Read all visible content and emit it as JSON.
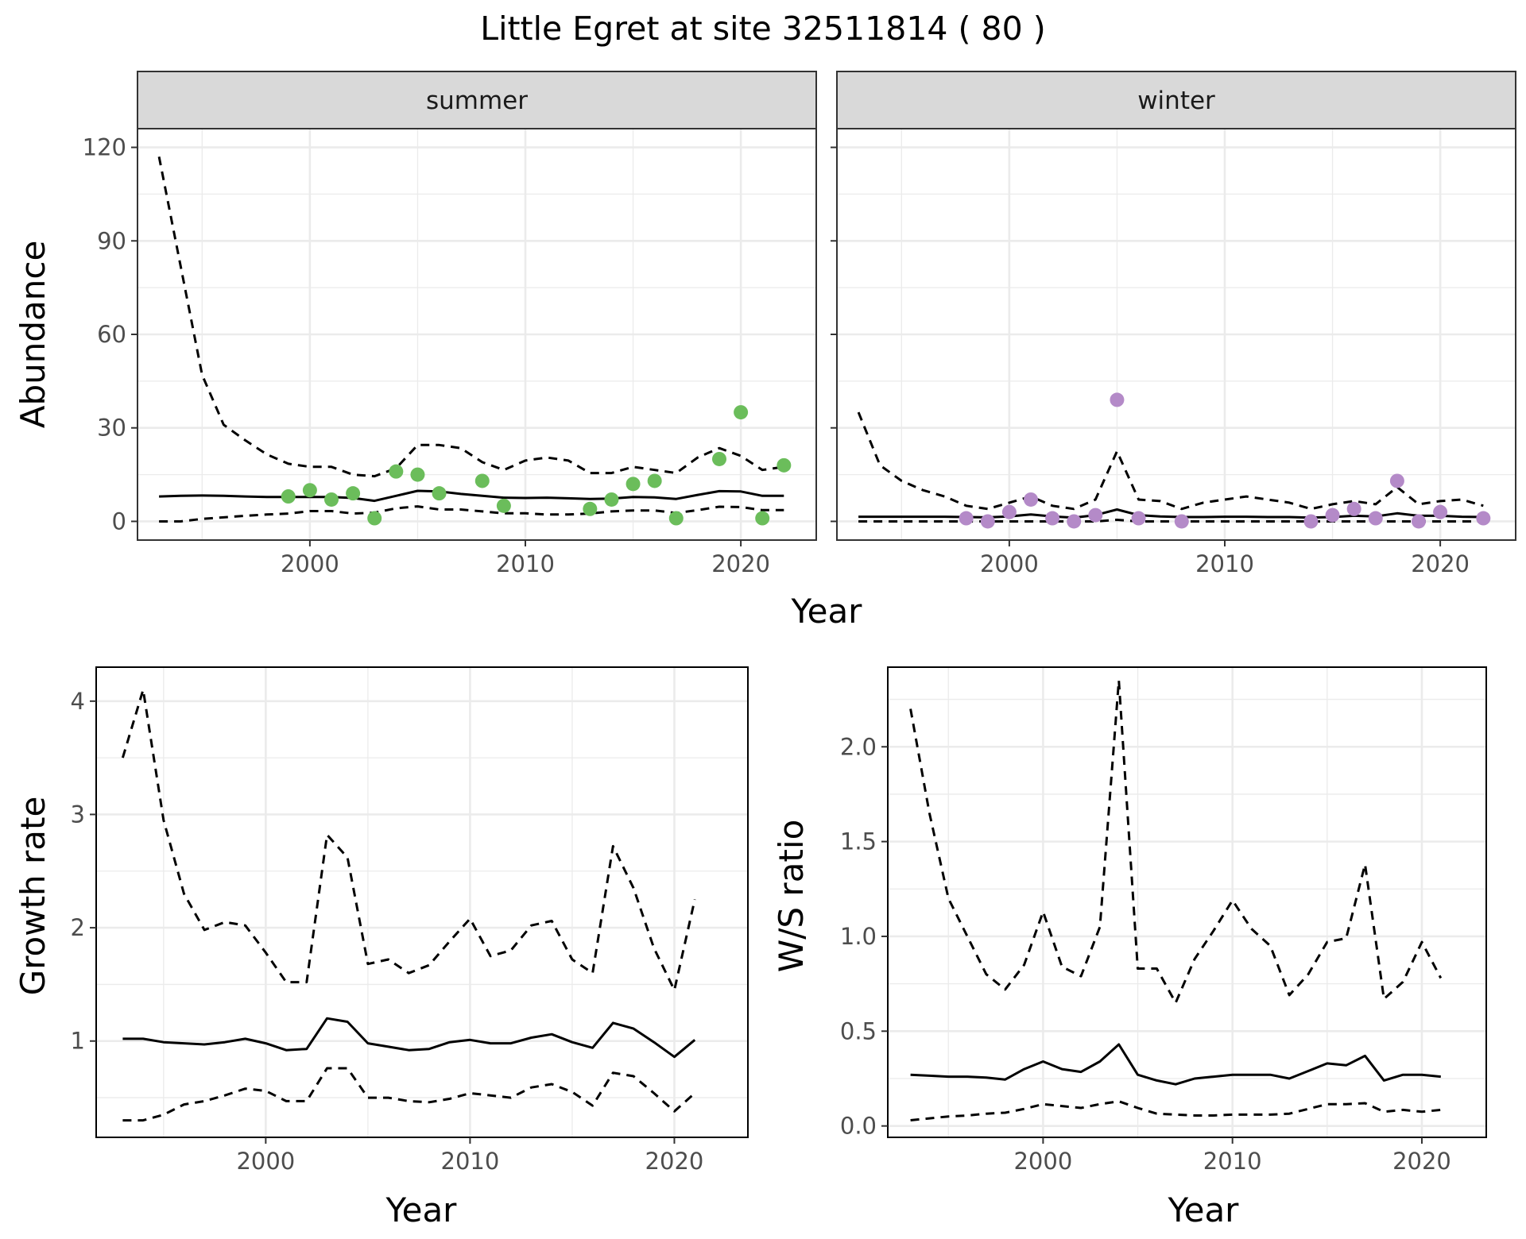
{
  "title": "Little Egret at site 32511814 ( 80 )",
  "colors": {
    "summer_points": "#6bbd5b",
    "winter_points": "#b48ac8",
    "lines": "#000000",
    "strip_bg": "#d9d9d9",
    "grid": "#ebebeb",
    "panel_border": "#333333"
  },
  "chart_data": [
    {
      "type": "line",
      "panel": "summer",
      "facet_label": "summer",
      "xlabel": "Year",
      "ylabel": "Abundance",
      "xlim": [
        1992,
        2023.5
      ],
      "ylim": [
        -6,
        126
      ],
      "x_ticks": [
        2000,
        2010,
        2020
      ],
      "y_ticks": [
        0,
        30,
        60,
        90,
        120
      ],
      "grid": true,
      "x": [
        1993,
        1994,
        1995,
        1996,
        1997,
        1998,
        1999,
        2000,
        2001,
        2002,
        2003,
        2004,
        2005,
        2006,
        2007,
        2008,
        2009,
        2010,
        2011,
        2012,
        2013,
        2014,
        2015,
        2016,
        2017,
        2018,
        2019,
        2020,
        2021,
        2022
      ],
      "series": [
        {
          "role": "estimate",
          "style": "solid",
          "values": [
            8,
            8.2,
            8.3,
            8.2,
            8,
            7.8,
            7.8,
            7.8,
            7.8,
            7.5,
            6.6,
            8.2,
            9.8,
            9.6,
            8.8,
            8.2,
            7.6,
            7.5,
            7.6,
            7.4,
            7.2,
            7.3,
            7.8,
            7.7,
            7.2,
            8.5,
            9.7,
            9.6,
            8.2,
            8.2
          ]
        },
        {
          "role": "upper",
          "style": "dashed",
          "values": [
            117,
            82,
            47,
            31,
            26,
            21.5,
            18.5,
            17.5,
            17.5,
            15,
            14.5,
            17,
            24.5,
            24.5,
            23.5,
            19,
            16.5,
            19.5,
            20.5,
            19.5,
            15.5,
            15.5,
            17.5,
            16.5,
            15.5,
            20.5,
            23.5,
            21,
            16.5,
            17.5
          ]
        },
        {
          "role": "lower",
          "style": "dashed",
          "values": [
            0,
            0,
            0.8,
            1.3,
            1.8,
            2.2,
            2.5,
            3.3,
            3.3,
            2.5,
            2.8,
            4.2,
            4.8,
            3.8,
            3.8,
            3.2,
            2.6,
            2.6,
            2.2,
            2.2,
            2.5,
            3.2,
            3.5,
            3.5,
            2.7,
            3.6,
            4.7,
            4.6,
            3.6,
            3.6
          ]
        }
      ],
      "points": {
        "x": [
          1999,
          2000,
          2001,
          2002,
          2003,
          2004,
          2005,
          2006,
          2008,
          2009,
          2013,
          2014,
          2015,
          2016,
          2017,
          2019,
          2020,
          2021,
          2022
        ],
        "y": [
          8,
          10,
          7,
          9,
          1,
          16,
          15,
          9,
          13,
          5,
          4,
          7,
          12,
          13,
          1,
          20,
          35,
          1,
          18
        ]
      }
    },
    {
      "type": "line",
      "panel": "winter",
      "facet_label": "winter",
      "xlabel": "Year",
      "ylabel": "Abundance",
      "xlim": [
        1992,
        2023.5
      ],
      "ylim": [
        -6,
        126
      ],
      "x_ticks": [
        2000,
        2010,
        2020
      ],
      "y_ticks": [
        0,
        30,
        60,
        90,
        120
      ],
      "grid": true,
      "x": [
        1993,
        1994,
        1995,
        1996,
        1997,
        1998,
        1999,
        2000,
        2001,
        2002,
        2003,
        2004,
        2005,
        2006,
        2007,
        2008,
        2009,
        2010,
        2011,
        2012,
        2013,
        2014,
        2015,
        2016,
        2017,
        2018,
        2019,
        2020,
        2021,
        2022
      ],
      "series": [
        {
          "role": "estimate",
          "style": "solid",
          "values": [
            1.5,
            1.5,
            1.5,
            1.5,
            1.5,
            1.4,
            1.3,
            1.6,
            2.2,
            1.6,
            1.2,
            2,
            3.8,
            2,
            1.6,
            1.4,
            1.4,
            1.5,
            1.5,
            1.4,
            1.4,
            1.2,
            1.4,
            1.8,
            1.6,
            2.6,
            1.8,
            1.8,
            1.5,
            1.4
          ]
        },
        {
          "role": "upper",
          "style": "dashed",
          "values": [
            35,
            18,
            13,
            10,
            8,
            5,
            4,
            6,
            8,
            5,
            4,
            7,
            22.5,
            7,
            6.5,
            4,
            6,
            7,
            8,
            7,
            6,
            4,
            5.5,
            6.5,
            5.5,
            11,
            5.5,
            6.5,
            7,
            5
          ]
        },
        {
          "role": "lower",
          "style": "dashed",
          "values": [
            0,
            0,
            0,
            0,
            0,
            0,
            0,
            0,
            0,
            0,
            0,
            0,
            0.5,
            0,
            0,
            0,
            0,
            0,
            0,
            0,
            0,
            0,
            0,
            0,
            0,
            0,
            0,
            0,
            0,
            0
          ]
        }
      ],
      "points": {
        "x": [
          1998,
          1999,
          2000,
          2001,
          2002,
          2003,
          2004,
          2005,
          2006,
          2008,
          2014,
          2015,
          2016,
          2017,
          2018,
          2019,
          2020,
          2022
        ],
        "y": [
          1,
          0,
          3,
          7,
          1,
          0,
          2,
          39,
          1,
          0,
          0,
          2,
          4,
          1,
          13,
          0,
          3,
          1
        ]
      }
    },
    {
      "type": "line",
      "panel": "growth",
      "xlabel": "Year",
      "ylabel": "Growth rate",
      "xlim": [
        1991.7,
        2023.6
      ],
      "ylim": [
        0.15,
        4.3
      ],
      "x_ticks": [
        2000,
        2010,
        2020
      ],
      "y_ticks": [
        1,
        2,
        3,
        4
      ],
      "grid": true,
      "x": [
        1993,
        1994,
        1995,
        1996,
        1997,
        1998,
        1999,
        2000,
        2001,
        2002,
        2003,
        2004,
        2005,
        2006,
        2007,
        2008,
        2009,
        2010,
        2011,
        2012,
        2013,
        2014,
        2015,
        2016,
        2017,
        2018,
        2019,
        2020,
        2021
      ],
      "series": [
        {
          "role": "estimate",
          "style": "solid",
          "values": [
            1.02,
            1.02,
            0.99,
            0.98,
            0.97,
            0.99,
            1.02,
            0.98,
            0.92,
            0.93,
            1.2,
            1.17,
            0.98,
            0.95,
            0.92,
            0.93,
            0.99,
            1.01,
            0.98,
            0.98,
            1.03,
            1.06,
            0.99,
            0.94,
            1.16,
            1.11,
            0.99,
            0.86,
            1.01
          ]
        },
        {
          "role": "upper",
          "style": "dashed",
          "values": [
            3.5,
            4.1,
            2.95,
            2.3,
            1.98,
            2.05,
            2.02,
            1.78,
            1.52,
            1.52,
            2.82,
            2.62,
            1.68,
            1.72,
            1.6,
            1.67,
            1.88,
            2.08,
            1.75,
            1.8,
            2.02,
            2.06,
            1.72,
            1.6,
            2.72,
            2.35,
            1.82,
            1.45,
            2.25
          ]
        },
        {
          "role": "lower",
          "style": "dashed",
          "values": [
            0.3,
            0.3,
            0.35,
            0.44,
            0.47,
            0.52,
            0.58,
            0.56,
            0.47,
            0.47,
            0.76,
            0.76,
            0.5,
            0.5,
            0.47,
            0.46,
            0.49,
            0.54,
            0.52,
            0.5,
            0.59,
            0.62,
            0.55,
            0.43,
            0.72,
            0.69,
            0.54,
            0.38,
            0.54
          ]
        }
      ]
    },
    {
      "type": "line",
      "panel": "ratio",
      "xlabel": "Year",
      "ylabel": "W/S ratio",
      "xlim": [
        1991.8,
        2023.4
      ],
      "ylim": [
        -0.06,
        2.42
      ],
      "x_ticks": [
        2000,
        2010,
        2020
      ],
      "y_ticks": [
        0.0,
        0.5,
        1.0,
        1.5,
        2.0
      ],
      "y_tick_labels": [
        "0.0",
        "0.5",
        "1.0",
        "1.5",
        "2.0"
      ],
      "grid": true,
      "x": [
        1993,
        1994,
        1995,
        1996,
        1997,
        1998,
        1999,
        2000,
        2001,
        2002,
        2003,
        2004,
        2005,
        2006,
        2007,
        2008,
        2009,
        2010,
        2011,
        2012,
        2013,
        2014,
        2015,
        2016,
        2017,
        2018,
        2019,
        2020,
        2021
      ],
      "series": [
        {
          "role": "estimate",
          "style": "solid",
          "values": [
            0.27,
            0.265,
            0.26,
            0.26,
            0.255,
            0.245,
            0.3,
            0.34,
            0.3,
            0.285,
            0.34,
            0.43,
            0.27,
            0.24,
            0.22,
            0.25,
            0.26,
            0.27,
            0.27,
            0.27,
            0.25,
            0.29,
            0.33,
            0.32,
            0.37,
            0.24,
            0.27,
            0.27,
            0.26
          ]
        },
        {
          "role": "upper",
          "style": "dashed",
          "values": [
            2.2,
            1.65,
            1.2,
            1.0,
            0.8,
            0.72,
            0.85,
            1.13,
            0.84,
            0.79,
            1.05,
            2.35,
            0.83,
            0.83,
            0.65,
            0.88,
            1.03,
            1.19,
            1.04,
            0.95,
            0.69,
            0.8,
            0.97,
            0.99,
            1.38,
            0.67,
            0.76,
            0.97,
            0.78
          ]
        },
        {
          "role": "lower",
          "style": "dashed",
          "values": [
            0.03,
            0.04,
            0.05,
            0.055,
            0.065,
            0.07,
            0.09,
            0.115,
            0.105,
            0.095,
            0.115,
            0.13,
            0.095,
            0.065,
            0.06,
            0.055,
            0.055,
            0.06,
            0.06,
            0.06,
            0.065,
            0.09,
            0.115,
            0.115,
            0.12,
            0.075,
            0.085,
            0.075,
            0.085
          ]
        }
      ]
    }
  ]
}
